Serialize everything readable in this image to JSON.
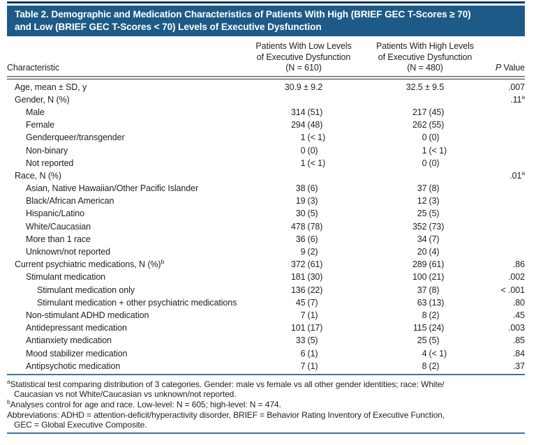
{
  "colors": {
    "banner": "#1e5a87",
    "top_rule": "#17375c",
    "rule_blue": "#3d72a4"
  },
  "title": {
    "lines": [
      "Table 2. Demographic and Medication Characteristics of Patients With High (BRIEF GEC T-Scores ≥ 70)",
      "and Low (BRIEF GEC T-Scores < 70) Levels of Executive Dysfunction"
    ]
  },
  "header": {
    "characteristic": "Characteristic",
    "low_col": [
      "Patients With Low Levels",
      "of Executive Dysfunction",
      "(N = 610)"
    ],
    "high_col": [
      "Patients With High Levels",
      "of Executive Dysfunction",
      "(N = 480)"
    ],
    "p_italic": "P",
    "p_rest": " Value"
  },
  "table": {
    "rows": [
      {
        "label": "Age, mean ± SD, y",
        "indent": 0,
        "low": "30.9 ± 9.2",
        "high": "32.5 ± 9.5",
        "p": ".007"
      },
      {
        "label": "Gender, N (%)",
        "indent": 0,
        "low": "",
        "high": "",
        "p": ".11",
        "p_sup": "a"
      },
      {
        "label": "Male",
        "indent": 1,
        "low": "314 (51)",
        "high": "217 (45)",
        "p": ""
      },
      {
        "label": "Female",
        "indent": 1,
        "low": "294 (48)",
        "high": "262 (55)",
        "p": ""
      },
      {
        "label": "Genderqueer/transgender",
        "indent": 1,
        "low": "1 (< 1)",
        "high": "0 (0)",
        "p": ""
      },
      {
        "label": "Non-binary",
        "indent": 1,
        "low": "0 (0)",
        "high": "1 (< 1)",
        "p": ""
      },
      {
        "label": "Not reported",
        "indent": 1,
        "low": "1 (< 1)",
        "high": "0 (0)",
        "p": ""
      },
      {
        "label": "Race, N (%)",
        "indent": 0,
        "low": "",
        "high": "",
        "p": ".01",
        "p_sup": "a"
      },
      {
        "label": "Asian, Native Hawaiian/Other Pacific Islander",
        "indent": 1,
        "low": "38 (6)",
        "high": "37 (8)",
        "p": ""
      },
      {
        "label": "Black/African American",
        "indent": 1,
        "low": "19 (3)",
        "high": "12 (3)",
        "p": ""
      },
      {
        "label": "Hispanic/Latino",
        "indent": 1,
        "low": "30 (5)",
        "high": "25 (5)",
        "p": ""
      },
      {
        "label": "White/Caucasian",
        "indent": 1,
        "low": "478 (78)",
        "high": "352 (73)",
        "p": ""
      },
      {
        "label": "More than 1 race",
        "indent": 1,
        "low": "36 (6)",
        "high": "34 (7)",
        "p": ""
      },
      {
        "label": "Unknown/not reported",
        "indent": 1,
        "low": "9 (2)",
        "high": "20 (4)",
        "p": ""
      },
      {
        "label": "Current psychiatric medications, N (%)",
        "label_sup": "b",
        "indent": 0,
        "low": "372 (61)",
        "high": "289 (61)",
        "p": ".86"
      },
      {
        "label": "Stimulant medication",
        "indent": 1,
        "low": "181 (30)",
        "high": "100 (21)",
        "p": ".002"
      },
      {
        "label": "Stimulant medication only",
        "indent": 2,
        "low": "136 (22)",
        "high": "37 (8)",
        "p": "< .001"
      },
      {
        "label": "Stimulant medication + other psychiatric medications",
        "indent": 2,
        "low": "45 (7)",
        "high": "63 (13)",
        "p": ".80"
      },
      {
        "label": "Non-stimulant ADHD medication",
        "indent": 1,
        "low": "7 (1)",
        "high": "8 (2)",
        "p": ".45"
      },
      {
        "label": "Antidepressant medication",
        "indent": 1,
        "low": "101 (17)",
        "high": "115 (24)",
        "p": ".003"
      },
      {
        "label": "Antianxiety medication",
        "indent": 1,
        "low": "33 (5)",
        "high": "25 (5)",
        "p": ".85"
      },
      {
        "label": "Mood stabilizer medication",
        "indent": 1,
        "low": "6 (1)",
        "high": "4 (< 1)",
        "p": ".84"
      },
      {
        "label": "Antipsychotic medication",
        "indent": 1,
        "low": "7 (1)",
        "high": "8 (2)",
        "p": ".37"
      }
    ]
  },
  "footnotes": [
    {
      "sup": "a",
      "lines": [
        "Statistical test comparing distribution of 3 categories. Gender: male vs female vs all other gender identities; race: White/",
        "Caucasian vs not White/Caucasian vs unknown/not reported."
      ]
    },
    {
      "sup": "b",
      "lines": [
        "Analyses control for age and race. Low-level: N = 605; high-level: N = 474."
      ]
    },
    {
      "sup": "",
      "lines": [
        "Abbreviations: ADHD = attention-deficit/hyperactivity disorder, BRIEF = Behavior Rating Inventory of Executive Function,",
        "GEC = Global Executive Composite."
      ]
    }
  ]
}
